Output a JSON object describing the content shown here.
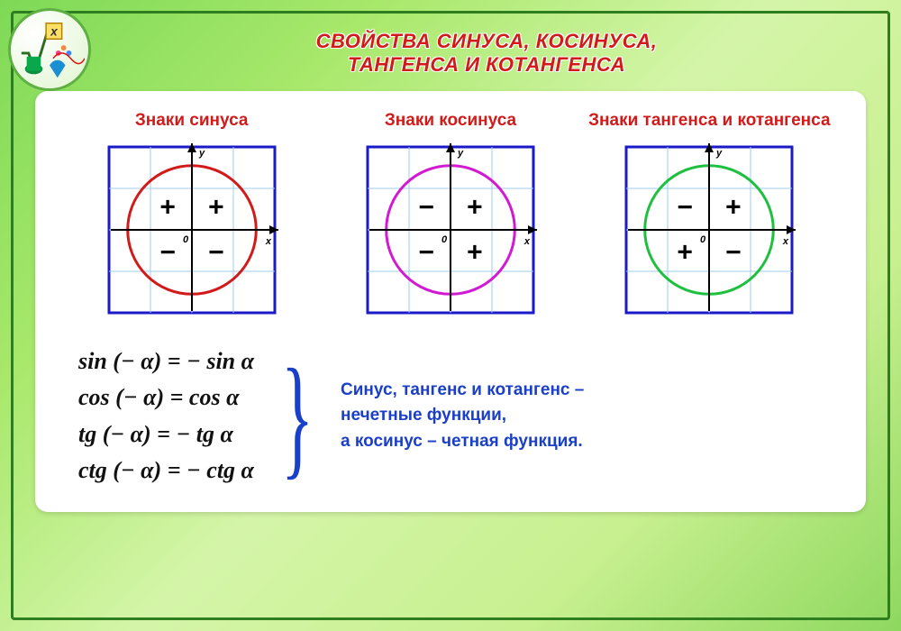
{
  "title_line1": "СВОЙСТВА СИНУСА, КОСИНУСА,",
  "title_line2": "ТАНГЕНСА И КОТАНГЕНСА",
  "charts": [
    {
      "label": "Знаки синуса",
      "circle_color": "#d11a1a",
      "quadrants": {
        "q1": "+",
        "q2": "+",
        "q3": "−",
        "q4": "−"
      }
    },
    {
      "label": "Знаки косинуса",
      "circle_color": "#d11ad1",
      "quadrants": {
        "q1": "+",
        "q2": "−",
        "q3": "−",
        "q4": "+"
      }
    },
    {
      "label": "Знаки тангенса и котангенса",
      "circle_color": "#1fbf3f",
      "quadrants": {
        "q1": "+",
        "q2": "−",
        "q3": "+",
        "q4": "−"
      }
    }
  ],
  "chart_style": {
    "border_color": "#1a1ac9",
    "grid_color": "#9fcfe8",
    "axis_color": "#000000",
    "sign_fontsize": 30,
    "axis_label_fontsize": 11,
    "background": "#ffffff"
  },
  "formulas": [
    "sin (− α) = − sin α",
    "cos (− α) = cos α",
    "tg (− α) = − tg α",
    "ctg (− α) = − ctg α"
  ],
  "description": "Синус, тангенс и котангенс – нечетные функции,\nа косинус – четная функция.",
  "colors": {
    "title": "#d11a1a",
    "label": "#d11a1a",
    "desc": "#1a3fc9",
    "formula": "#111111",
    "brace": "#1a3fc9"
  }
}
